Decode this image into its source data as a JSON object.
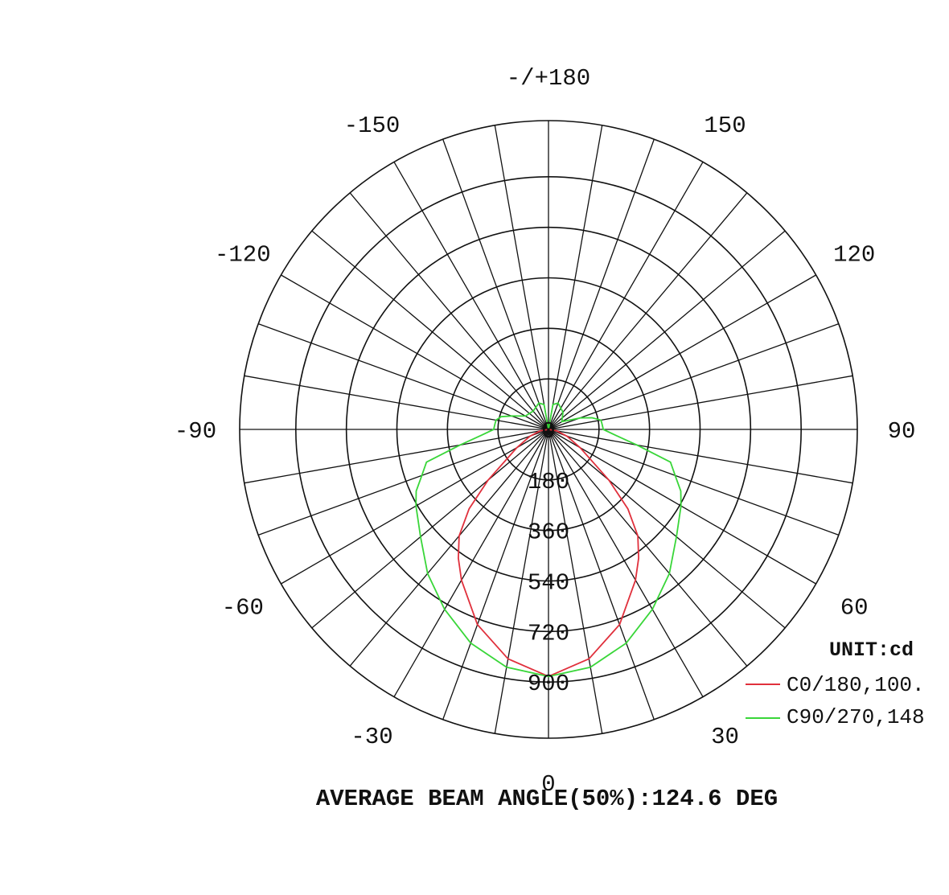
{
  "chart_data": {
    "type": "polar",
    "unit_label": "UNIT:cd",
    "footer": "AVERAGE BEAM ANGLE(50%):124.6 DEG",
    "radial_ticks": [
      "0",
      "180",
      "360",
      "540",
      "720",
      "900"
    ],
    "radial_tick_values": [
      0,
      180,
      360,
      540,
      720,
      900
    ],
    "rmax": 1100,
    "angle_step_deg": 10,
    "grid": true,
    "legend_position": "bottom-right",
    "angle_labels": [
      {
        "angle": 180,
        "text": "-/+180"
      },
      {
        "angle": 150,
        "text": "150"
      },
      {
        "angle": -150,
        "text": "-150"
      },
      {
        "angle": 120,
        "text": "120"
      },
      {
        "angle": -120,
        "text": "-120"
      },
      {
        "angle": 90,
        "text": "90"
      },
      {
        "angle": -90,
        "text": "-90"
      },
      {
        "angle": 60,
        "text": "60"
      },
      {
        "angle": -60,
        "text": "-60"
      },
      {
        "angle": 30,
        "text": "30"
      },
      {
        "angle": -30,
        "text": "-30"
      },
      {
        "angle": 0,
        "text": "0"
      }
    ],
    "series": [
      {
        "name": "C0/180,100.",
        "color": "#e0303c",
        "angles": [
          -90,
          -80,
          -70,
          -60,
          -50,
          -45,
          -40,
          -35,
          -30,
          -20,
          -10,
          0,
          10,
          20,
          30,
          35,
          40,
          45,
          50,
          60,
          70,
          80,
          90
        ],
        "values": [
          0,
          30,
          70,
          130,
          280,
          400,
          495,
          560,
          620,
          740,
          830,
          880,
          830,
          740,
          620,
          560,
          495,
          400,
          280,
          130,
          70,
          30,
          0
        ]
      },
      {
        "name": "C90/270,148",
        "color": "#39d639",
        "angles": [
          -180,
          -170,
          -160,
          -140,
          -120,
          -110,
          -105,
          -100,
          -95,
          -90,
          -85,
          -80,
          -75,
          -70,
          -65,
          -60,
          -50,
          -40,
          -30,
          -20,
          -10,
          0,
          10,
          20,
          30,
          40,
          50,
          60,
          65,
          70,
          75,
          80,
          85,
          90,
          95,
          100,
          105,
          110,
          120,
          140,
          160,
          170,
          180
        ],
        "values": [
          0,
          90,
          100,
          85,
          95,
          140,
          175,
          190,
          192,
          195,
          240,
          320,
          450,
          480,
          520,
          545,
          595,
          670,
          740,
          810,
          860,
          880,
          860,
          810,
          740,
          670,
          595,
          545,
          520,
          480,
          450,
          320,
          240,
          195,
          192,
          190,
          160,
          120,
          55,
          80,
          100,
          90,
          0
        ]
      }
    ]
  }
}
